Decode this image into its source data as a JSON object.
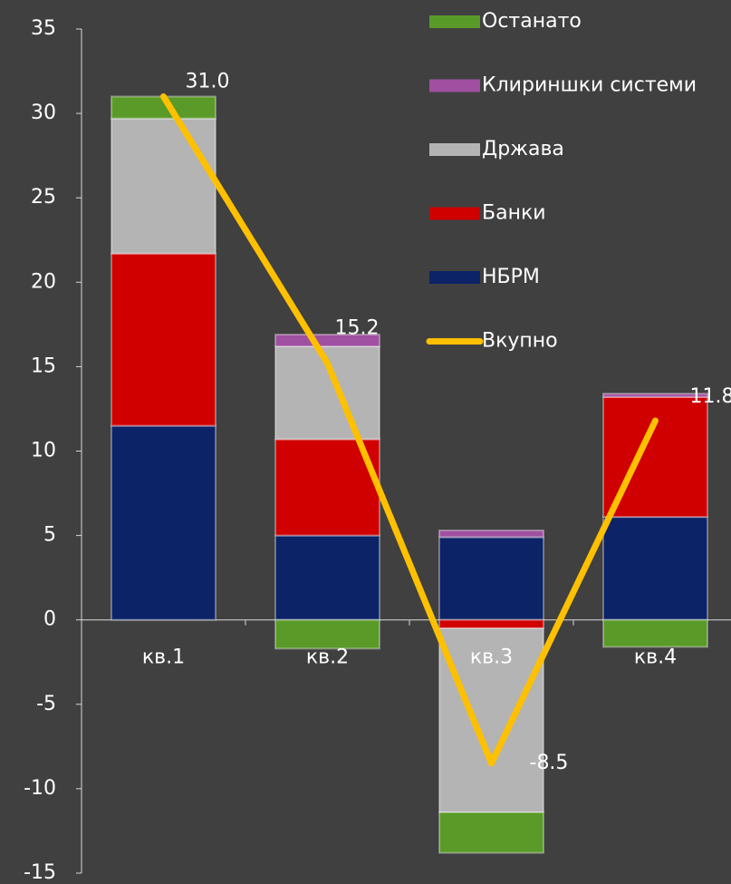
{
  "chart_data": {
    "type": "bar",
    "stacked": true,
    "categories": [
      "кв.1",
      "кв.2",
      "кв.3",
      "кв.4"
    ],
    "series": [
      {
        "name": "НБРМ",
        "color": "#0c2368",
        "values": [
          11.5,
          5.0,
          4.9,
          6.1
        ]
      },
      {
        "name": "Банки",
        "color": "#d00000",
        "values": [
          10.2,
          5.7,
          -0.5,
          7.1
        ]
      },
      {
        "name": "Држава",
        "color": "#b4b4b4",
        "values": [
          8.0,
          5.5,
          -10.9,
          0
        ]
      },
      {
        "name": "Клириншки системи",
        "color": "#a050a0",
        "values": [
          0,
          0.7,
          0.4,
          0.2
        ]
      },
      {
        "name": "Останато",
        "color": "#5a9a28",
        "values": [
          1.3,
          -1.7,
          -2.4,
          -1.6
        ]
      },
      {
        "name": "Вкупно",
        "type": "line",
        "color": "#ffc000",
        "values": [
          31.0,
          15.2,
          -8.5,
          11.8
        ],
        "value_labels": [
          "31.0",
          "15.2",
          "-8.5",
          "11.8"
        ]
      }
    ],
    "ylim": [
      -15,
      35
    ],
    "yticks": [
      -15,
      -10,
      -5,
      0,
      5,
      10,
      15,
      20,
      25,
      30,
      35
    ],
    "legend": "right"
  }
}
